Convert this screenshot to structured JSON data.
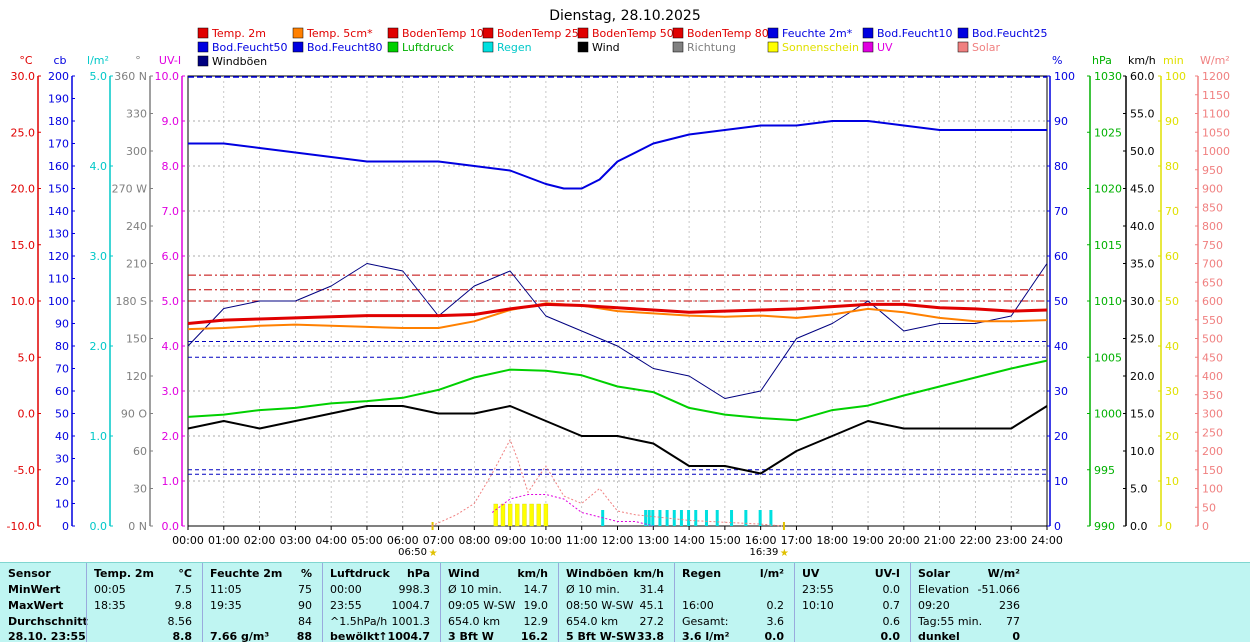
{
  "title": "Dienstag, 28.10.2025",
  "legend": [
    {
      "label": "Temp. 2m",
      "color": "#e00000",
      "text_color": "#e00000"
    },
    {
      "label": "Temp. 5cm*",
      "color": "#ff8000",
      "text_color": "#e00000"
    },
    {
      "label": "BodenTemp 10",
      "color": "#e00000",
      "text_color": "#e00000"
    },
    {
      "label": "BodenTemp 25",
      "color": "#e00000",
      "text_color": "#e00000"
    },
    {
      "label": "BodenTemp 50",
      "color": "#e00000",
      "text_color": "#e00000"
    },
    {
      "label": "BodenTemp 80",
      "color": "#e00000",
      "text_color": "#e00000"
    },
    {
      "label": "Feuchte 2m*",
      "color": "#0000e0",
      "text_color": "#0000e0"
    },
    {
      "label": "Bod.Feucht10",
      "color": "#0000e0",
      "text_color": "#0000e0"
    },
    {
      "label": "Bod.Feucht25",
      "color": "#0000e0",
      "text_color": "#0000e0"
    },
    {
      "label": "Bod.Feucht50",
      "color": "#0000e0",
      "text_color": "#0000e0"
    },
    {
      "label": "Bod.Feucht80",
      "color": "#0000e0",
      "text_color": "#0000e0"
    },
    {
      "label": "Luftdruck",
      "color": "#00d000",
      "text_color": "#00b000"
    },
    {
      "label": "Regen",
      "color": "#00e0e0",
      "text_color": "#00c8c8"
    },
    {
      "label": "Wind",
      "color": "#000000",
      "text_color": "#000000"
    },
    {
      "label": "Richtung",
      "color": "#808080",
      "text_color": "#808080"
    },
    {
      "label": "Sonnenschein",
      "color": "#ffff00",
      "text_color": "#e0e000"
    },
    {
      "label": "UV",
      "color": "#e000e0",
      "text_color": "#e000e0"
    },
    {
      "label": "Solar",
      "color": "#f08080",
      "text_color": "#f08080"
    },
    {
      "label": "Windböen",
      "color": "#000080",
      "text_color": "#000000"
    }
  ],
  "axes_left": [
    {
      "unit": "°C",
      "color": "#e00000",
      "ticks": [
        "30.0",
        "25.0",
        "20.0",
        "15.0",
        "10.0",
        "5.0",
        "0.0",
        "-5.0",
        "-10.0"
      ]
    },
    {
      "unit": "cb",
      "color": "#0000e0",
      "ticks": [
        "200",
        "190",
        "180",
        "170",
        "160",
        "150",
        "140",
        "130",
        "120",
        "110",
        "100",
        "90",
        "80",
        "70",
        "60",
        "50",
        "40",
        "30",
        "20",
        "10",
        "0"
      ]
    },
    {
      "unit": "l/m²",
      "color": "#00c8c8",
      "ticks": [
        "5.0",
        "4.0",
        "3.0",
        "2.0",
        "1.0",
        "0.0"
      ]
    },
    {
      "unit": "°",
      "color": "#808080",
      "ticks": [
        "360 N",
        "330",
        "300",
        "270 W",
        "240",
        "210",
        "180 S",
        "150",
        "120",
        "90 O",
        "60",
        "30",
        "0 N"
      ]
    },
    {
      "unit": "UV-I",
      "color": "#e000e0",
      "ticks": [
        "10.0",
        "9.0",
        "8.0",
        "7.0",
        "6.0",
        "5.0",
        "4.0",
        "3.0",
        "2.0",
        "1.0",
        "0.0"
      ]
    }
  ],
  "axes_right": [
    {
      "unit": "%",
      "color": "#0000e0",
      "ticks": [
        "100",
        "90",
        "80",
        "70",
        "60",
        "50",
        "40",
        "30",
        "20",
        "10",
        "0"
      ]
    },
    {
      "unit": "hPa",
      "color": "#00b000",
      "ticks": [
        "1030",
        "1025",
        "1020",
        "1015",
        "1010",
        "1005",
        "1000",
        "995",
        "990"
      ]
    },
    {
      "unit": "km/h",
      "color": "#000000",
      "ticks": [
        "60.0",
        "55.0",
        "50.0",
        "45.0",
        "40.0",
        "35.0",
        "30.0",
        "25.0",
        "20.0",
        "15.0",
        "10.0",
        "5.0",
        "0.0"
      ]
    },
    {
      "unit": "min",
      "color": "#e0e000",
      "ticks": [
        "100",
        "90",
        "80",
        "70",
        "60",
        "50",
        "40",
        "30",
        "20",
        "10",
        "0"
      ]
    },
    {
      "unit": "W/m²",
      "color": "#f08080",
      "ticks": [
        "1200",
        "1150",
        "1100",
        "1050",
        "1000",
        "950",
        "900",
        "850",
        "800",
        "750",
        "700",
        "650",
        "600",
        "550",
        "500",
        "450",
        "400",
        "350",
        "300",
        "250",
        "200",
        "150",
        "100",
        "50",
        "0"
      ]
    }
  ],
  "sunrise": "06:50",
  "sunset": "16:39",
  "colors": {
    "background": "#ffffff",
    "stats_bg": "#bff5f2",
    "grid": "#808080"
  },
  "chart_data": {
    "type": "line",
    "title": "Dienstag, 28.10.2025",
    "x_ticks": [
      "00:00",
      "01:00",
      "02:00",
      "03:00",
      "04:00",
      "05:00",
      "06:00",
      "07:00",
      "08:00",
      "09:00",
      "10:00",
      "11:00",
      "12:00",
      "13:00",
      "14:00",
      "15:00",
      "16:00",
      "17:00",
      "18:00",
      "19:00",
      "20:00",
      "21:00",
      "22:00",
      "23:00",
      "24:00"
    ],
    "x_range_hours": [
      0,
      24
    ],
    "grid": "dashed",
    "reference_lines_degC": [
      12.3,
      11.0,
      10.0
    ],
    "reference_lines_pct": [
      41.0,
      37.5,
      12.5,
      11.5
    ],
    "series": [
      {
        "name": "Temp. 2m",
        "unit": "°C",
        "color": "#e00000",
        "width": 3,
        "x": [
          0,
          1,
          2,
          3,
          4,
          5,
          6,
          7,
          8,
          9,
          10,
          11,
          12,
          13,
          14,
          15,
          16,
          17,
          18,
          19,
          20,
          21,
          22,
          23,
          24
        ],
        "values": [
          8.0,
          8.3,
          8.4,
          8.5,
          8.6,
          8.7,
          8.7,
          8.7,
          8.8,
          9.3,
          9.7,
          9.6,
          9.4,
          9.2,
          9.0,
          9.1,
          9.2,
          9.3,
          9.5,
          9.7,
          9.7,
          9.4,
          9.3,
          9.1,
          9.2
        ]
      },
      {
        "name": "Temp. 5cm*",
        "unit": "°C",
        "color": "#ff8000",
        "width": 2,
        "x": [
          0,
          1,
          2,
          3,
          4,
          5,
          6,
          7,
          8,
          9,
          10,
          11,
          12,
          13,
          14,
          15,
          16,
          17,
          18,
          19,
          20,
          21,
          22,
          23,
          24
        ],
        "values": [
          7.5,
          7.6,
          7.8,
          7.9,
          7.8,
          7.7,
          7.6,
          7.6,
          8.2,
          9.2,
          9.8,
          9.6,
          9.1,
          8.9,
          8.7,
          8.6,
          8.7,
          8.5,
          8.8,
          9.3,
          9.0,
          8.5,
          8.2,
          8.2,
          8.3
        ]
      },
      {
        "name": "Feuchte 2m*",
        "unit": "%",
        "color": "#0000e0",
        "width": 2,
        "x": [
          0,
          1,
          2,
          3,
          4,
          5,
          6,
          7,
          8,
          9,
          10,
          10.5,
          11,
          11.5,
          12,
          13,
          14,
          15,
          16,
          17,
          18,
          19,
          20,
          21,
          22,
          23,
          24
        ],
        "values": [
          85,
          85,
          84,
          83,
          82,
          81,
          81,
          81,
          80,
          79,
          76,
          75,
          75,
          77,
          81,
          85,
          87,
          88,
          89,
          89,
          90,
          90,
          89,
          88,
          88,
          88,
          88
        ]
      },
      {
        "name": "Luftdruck",
        "unit": "hPa",
        "color": "#00d000",
        "width": 2,
        "x": [
          0,
          1,
          2,
          3,
          4,
          5,
          6,
          7,
          8,
          9,
          10,
          11,
          12,
          13,
          14,
          15,
          16,
          17,
          18,
          19,
          20,
          21,
          22,
          23,
          24
        ],
        "values": [
          999.7,
          999.9,
          1000.3,
          1000.5,
          1000.9,
          1001.1,
          1001.4,
          1002.1,
          1003.2,
          1003.9,
          1003.8,
          1003.4,
          1002.4,
          1001.9,
          1000.5,
          999.9,
          999.6,
          999.4,
          1000.3,
          1000.7,
          1001.6,
          1002.4,
          1003.2,
          1004.0,
          1004.7
        ]
      },
      {
        "name": "Wind",
        "unit": "km/h",
        "color": "#000000",
        "width": 2,
        "x": [
          0,
          1,
          2,
          3,
          4,
          5,
          6,
          7,
          8,
          9,
          10,
          11,
          12,
          13,
          14,
          15,
          16,
          17,
          18,
          19,
          20,
          21,
          22,
          23,
          24
        ],
        "values": [
          13,
          14,
          13,
          14,
          15,
          16,
          16,
          15,
          15,
          16,
          14,
          12,
          12,
          11,
          8,
          8,
          7,
          10,
          12,
          14,
          13,
          13,
          13,
          13,
          16
        ]
      },
      {
        "name": "Windböen",
        "unit": "km/h",
        "color": "#000080",
        "width": 1,
        "x": [
          0,
          1,
          2,
          3,
          4,
          5,
          6,
          7,
          8,
          9,
          10,
          11,
          12,
          13,
          14,
          15,
          16,
          17,
          18,
          19,
          20,
          21,
          22,
          23,
          24
        ],
        "values": [
          24,
          29,
          30,
          30,
          32,
          35,
          34,
          28,
          32,
          34,
          28,
          26,
          24,
          21,
          20,
          17,
          18,
          25,
          27,
          30,
          26,
          27,
          27,
          28,
          35
        ]
      },
      {
        "name": "Solar",
        "unit": "W/m²",
        "color": "#f08080",
        "width": 1,
        "x": [
          6.8,
          7.5,
          8,
          8.5,
          9,
          9.2,
          9.5,
          10,
          10.5,
          11,
          11.5,
          12,
          12.5,
          13,
          13.5,
          14,
          15,
          16,
          16.6
        ],
        "values": [
          0,
          30,
          60,
          140,
          230,
          180,
          90,
          160,
          80,
          60,
          100,
          40,
          30,
          25,
          20,
          15,
          10,
          5,
          0
        ]
      },
      {
        "name": "UV",
        "unit": "UV-I",
        "color": "#e000e0",
        "width": 1,
        "x": [
          8.5,
          9,
          9.5,
          10,
          10.5,
          11,
          11.5,
          12,
          12.5,
          13
        ],
        "values": [
          0.3,
          0.6,
          0.7,
          0.7,
          0.6,
          0.3,
          0.2,
          0.1,
          0.1,
          0.0
        ]
      }
    ],
    "rain_bars_hours": [
      11.6,
      12.8,
      12.9,
      13.0,
      13.2,
      13.4,
      13.6,
      13.8,
      14.0,
      14.2,
      14.5,
      14.8,
      15.2,
      15.6,
      16.0,
      16.3
    ],
    "sunshine_bars_hours": [
      8.6,
      8.8,
      9.0,
      9.2,
      9.4,
      9.6,
      9.8,
      10.0
    ]
  },
  "stats": {
    "row_labels": [
      "Sensor",
      "MinWert",
      "MaxWert",
      "Durchschnitt",
      "28.10. 23:55"
    ],
    "columns": [
      {
        "header": "Temp. 2m",
        "unit": "°C",
        "rows": [
          [
            "00:05",
            "7.5"
          ],
          [
            "18:35",
            "9.8"
          ],
          [
            "",
            "8.56"
          ],
          [
            "",
            "8.8"
          ]
        ]
      },
      {
        "header": "Feuchte 2m",
        "unit": "%",
        "rows": [
          [
            "11:05",
            "75"
          ],
          [
            "19:35",
            "90"
          ],
          [
            "",
            "84"
          ],
          [
            "7.66 g/m³",
            "88"
          ]
        ]
      },
      {
        "header": "Luftdruck",
        "unit": "hPa",
        "rows": [
          [
            "00:00",
            "998.3"
          ],
          [
            "23:55",
            "1004.7"
          ],
          [
            "^1.5hPa/h",
            "1001.3"
          ],
          [
            "bewölkt",
            "↑1004.7"
          ]
        ]
      },
      {
        "header": "Wind",
        "unit": "km/h",
        "rows": [
          [
            "Ø 10 min.",
            "14.7"
          ],
          [
            "09:05  W-SW",
            "19.0"
          ],
          [
            "654.0 km",
            "12.9"
          ],
          [
            "3 Bft W",
            "16.2"
          ]
        ]
      },
      {
        "header": "Windböen",
        "unit": "km/h",
        "rows": [
          [
            "Ø 10 min.",
            "31.4"
          ],
          [
            "08:50  W-SW",
            "45.1"
          ],
          [
            "654.0 km",
            "27.2"
          ],
          [
            "5 Bft W-SW",
            "33.8"
          ]
        ]
      },
      {
        "header": "Regen",
        "unit": "l/m²",
        "rows": [
          [
            "",
            ""
          ],
          [
            "16:00",
            "0.2"
          ],
          [
            "Gesamt:",
            "3.6"
          ],
          [
            "3.6 l/m²",
            "0.0"
          ]
        ]
      },
      {
        "header": "UV",
        "unit": "UV-I",
        "rows": [
          [
            "23:55",
            "0.0"
          ],
          [
            "10:10",
            "0.7"
          ],
          [
            "",
            "0.6"
          ],
          [
            "",
            "0.0"
          ]
        ]
      },
      {
        "header": "Solar",
        "unit": "W/m²",
        "rows": [
          [
            "Elevation",
            "-51.066"
          ],
          [
            "09:20",
            "236"
          ],
          [
            "Tag:55 min.",
            "77"
          ],
          [
            "dunkel",
            "0"
          ]
        ]
      }
    ]
  }
}
